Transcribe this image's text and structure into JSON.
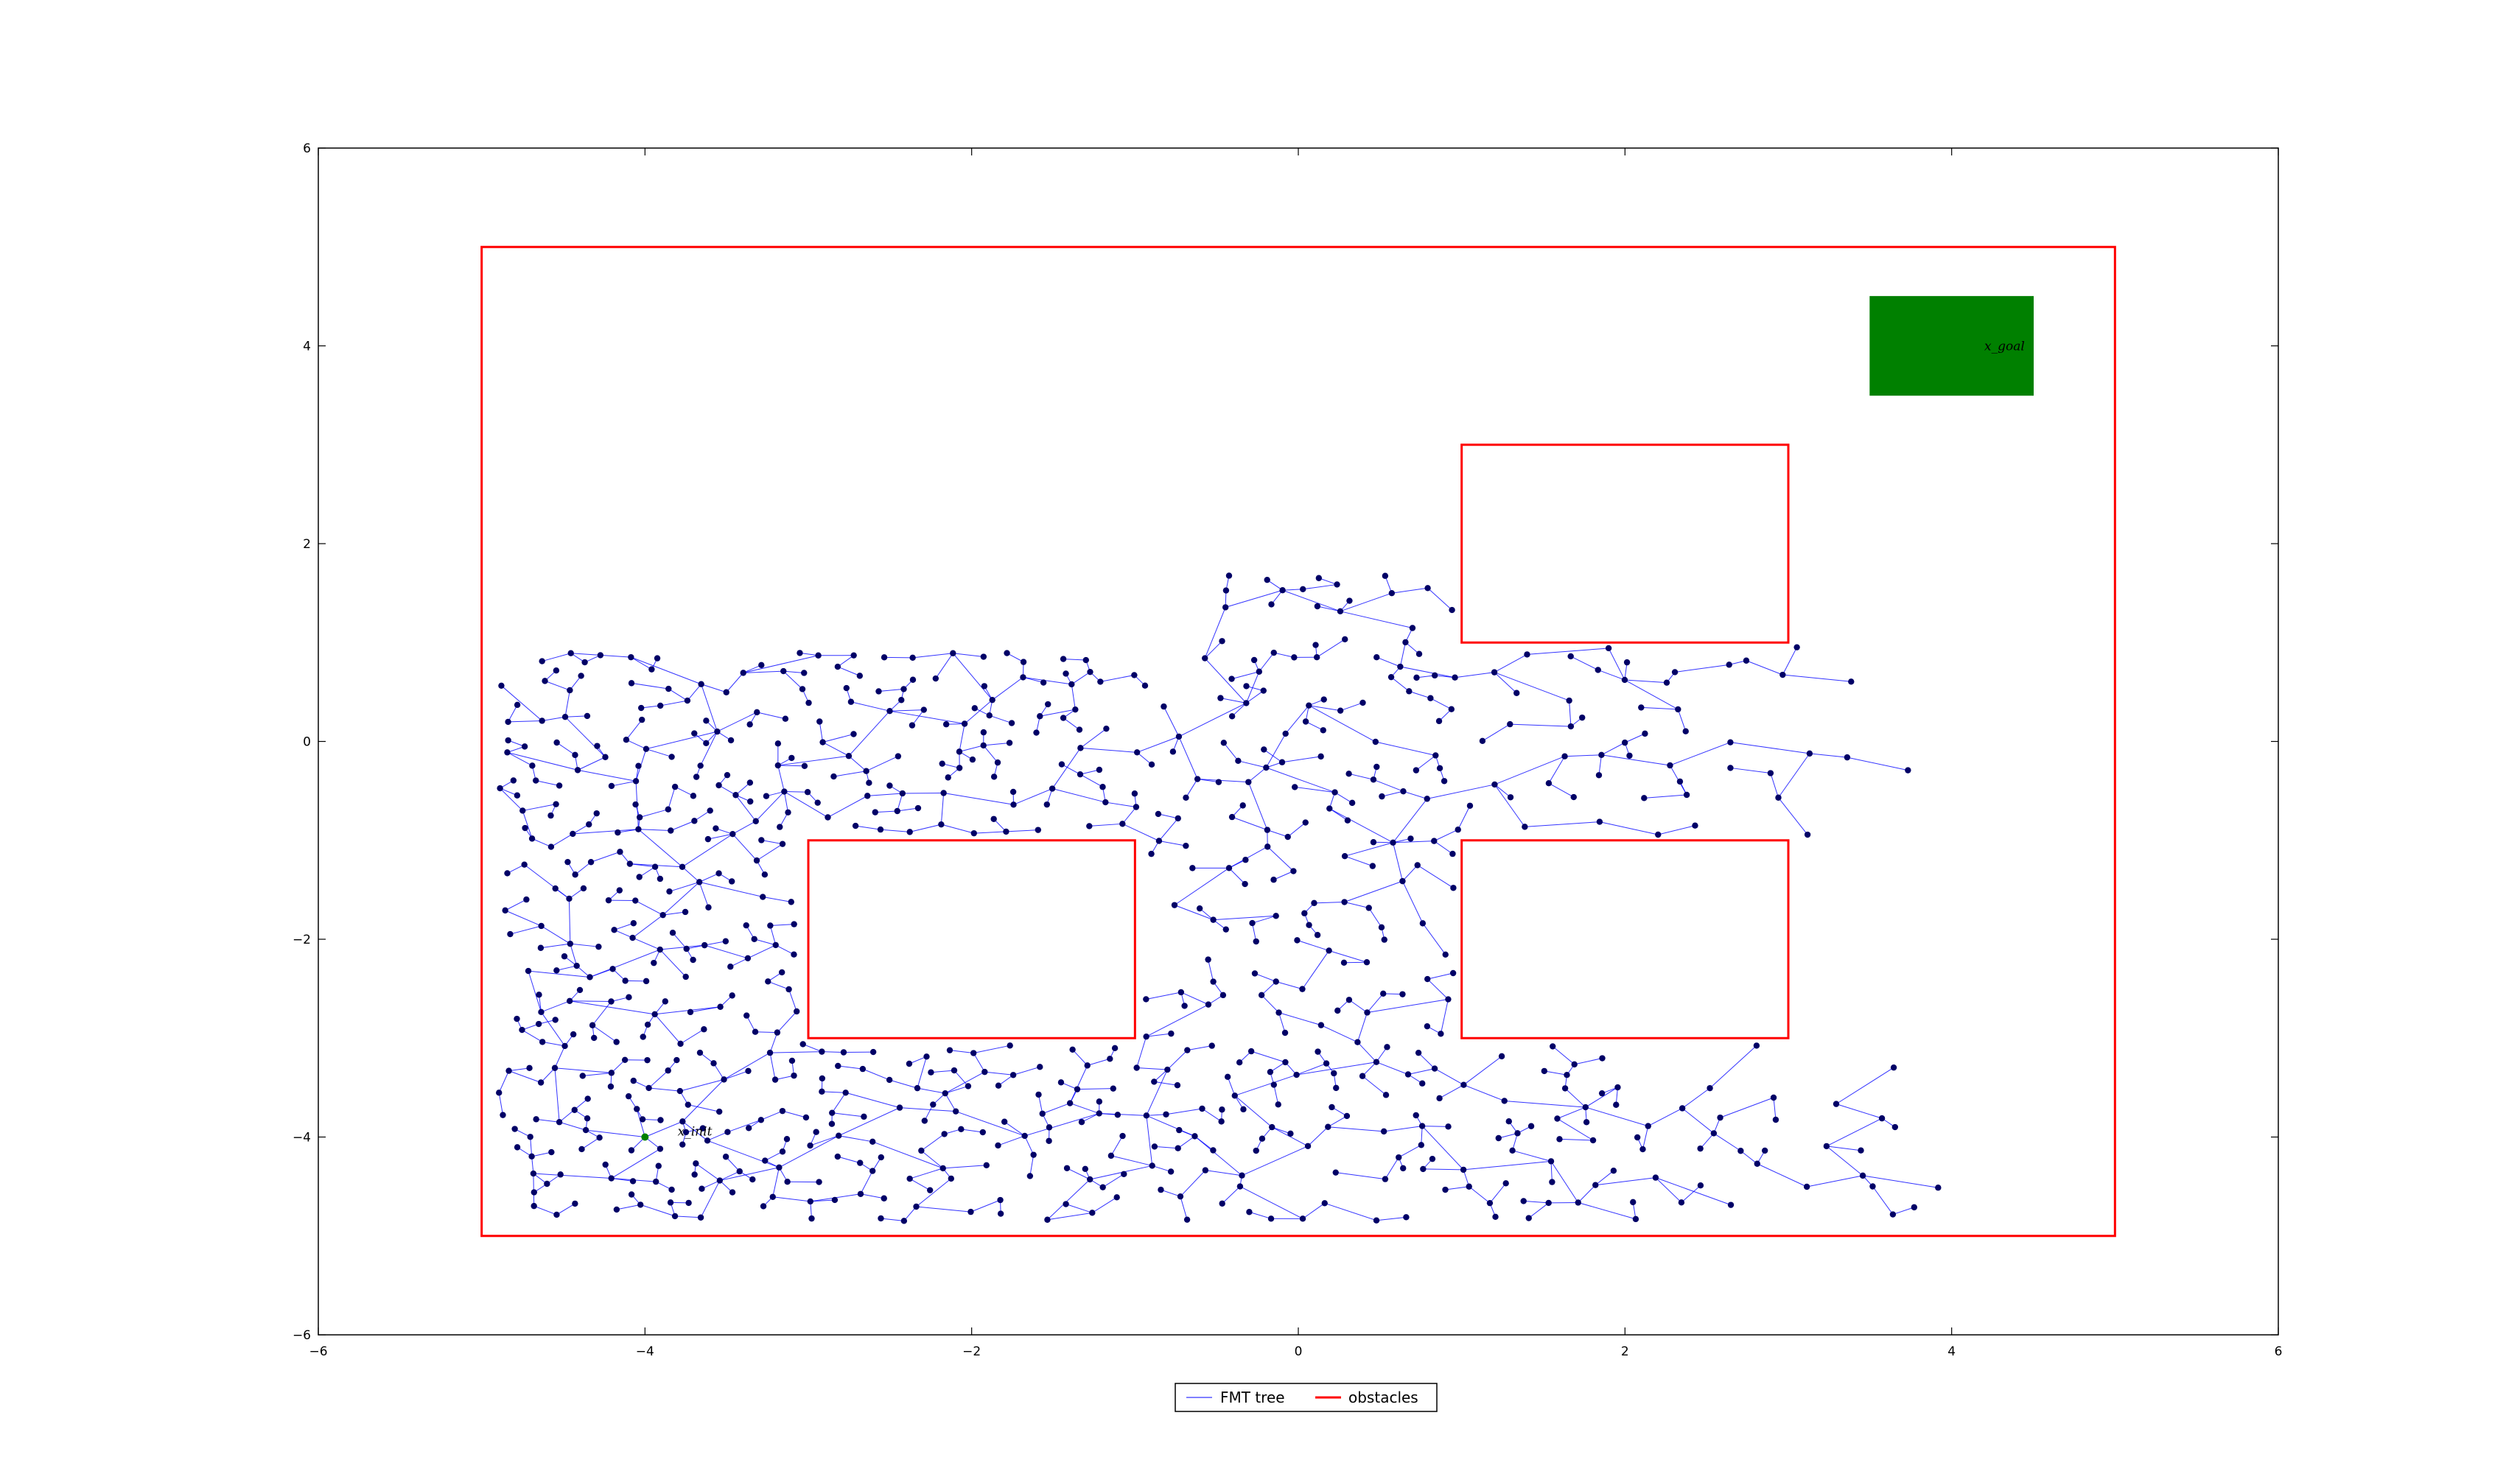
{
  "chart_data": {
    "type": "scatter",
    "title": "",
    "xlabel": "",
    "ylabel": "",
    "xlim": [
      -6,
      6
    ],
    "ylim": [
      -6,
      6
    ],
    "xticks": [
      -6,
      -4,
      -2,
      0,
      2,
      4,
      6
    ],
    "yticks": [
      -6,
      -4,
      -2,
      0,
      2,
      4,
      6
    ],
    "grid": false,
    "legend_position": "bottom-center",
    "legend": [
      "FMT tree",
      "obstacles"
    ],
    "colors": {
      "tree": "#0000ff",
      "nodes": "#000066",
      "obstacles": "#ff0000",
      "goal": "#008000",
      "init": "#008000"
    },
    "boundary": {
      "x0": -5,
      "y0": -5,
      "x1": 5,
      "y1": 5
    },
    "obstacle_rects": [
      {
        "x0": -3,
        "y0": -3,
        "x1": -1,
        "y1": -1
      },
      {
        "x0": 1,
        "y0": -3,
        "x1": 3,
        "y1": -1
      },
      {
        "x0": 1,
        "y0": 1,
        "x1": 3,
        "y1": 3
      }
    ],
    "goal_region": {
      "x0": 3.5,
      "y0": 3.5,
      "x1": 4.5,
      "y1": 4.5,
      "label": "x_goal"
    },
    "init_point": {
      "x": -4,
      "y": -4,
      "label": "x_init"
    },
    "tree_seed": 7,
    "tree_node_count": 820
  }
}
